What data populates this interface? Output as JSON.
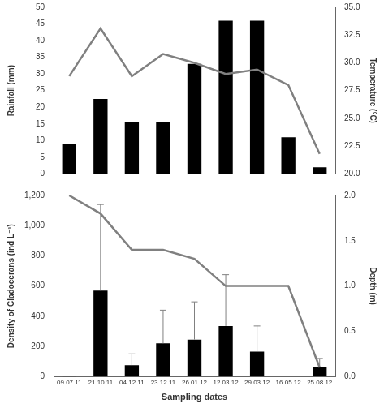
{
  "chart_data": [
    {
      "type": "bar",
      "categories": [
        null,
        null,
        null,
        null,
        null,
        null,
        null,
        null,
        null
      ],
      "ylim": [
        0,
        50
      ],
      "yticks": [
        0,
        5,
        10,
        15,
        20,
        25,
        30,
        35,
        40,
        45,
        50
      ],
      "y2lim": [
        20,
        35
      ],
      "y2ticks": [
        {
          "value": 20,
          "label": "20.0"
        },
        22.5,
        {
          "value": 25,
          "label": "25.0"
        },
        27.5,
        {
          "value": 30,
          "label": "30.0"
        },
        32.5,
        {
          "value": 35,
          "label": "35.0"
        }
      ],
      "grid": false,
      "series": [
        {
          "name": "Rainfall (mm)",
          "type": "bar",
          "color": "#000000",
          "values": [
            9,
            22.5,
            15.5,
            15.5,
            33,
            46,
            46,
            11,
            2
          ]
        },
        {
          "name": "Temperature (°C)",
          "type": "line",
          "axis": "y2",
          "color": "#808080",
          "marker": "none",
          "line_style": "solid",
          "values": [
            28.8,
            33.1,
            28.8,
            30.8,
            30.0,
            29.0,
            29.4,
            28.0,
            21.8
          ]
        }
      ]
    },
    {
      "type": "bar",
      "xlabel": "Sampling dates",
      "categories": [
        "09.07.11",
        "21.10.11",
        "04.12.11",
        "23.12.11",
        "26.01.12",
        "12.03.12",
        "29.03.12",
        "16.05.12",
        "25.08.12"
      ],
      "ylim": [
        0,
        1200
      ],
      "yticks": [
        0,
        200,
        400,
        600,
        800,
        {
          "value": 1000,
          "label": "1,000"
        },
        {
          "value": 1200,
          "label": "1,200"
        }
      ],
      "y2lim": [
        0,
        2
      ],
      "y2ticks": [
        {
          "value": 0,
          "label": "0.0"
        },
        0.5,
        {
          "value": 1,
          "label": "1.0"
        },
        1.5,
        {
          "value": 2,
          "label": "2.0"
        }
      ],
      "grid": false,
      "series": [
        {
          "name": "Density of Cladocerans (ind L⁻¹)",
          "type": "bar",
          "color": "#000000",
          "values": [
            3,
            570,
            75,
            220,
            245,
            335,
            165,
            0,
            60
          ],
          "errors": [
            null,
            570,
            75,
            220,
            250,
            340,
            170,
            null,
            60
          ]
        },
        {
          "name": "Depth (m)",
          "type": "line",
          "axis": "y2",
          "color": "#808080",
          "marker": "none",
          "line_style": "solid",
          "values": [
            2.0,
            1.8,
            1.4,
            1.4,
            1.3,
            1.0,
            1.0,
            1.0,
            0.1
          ]
        }
      ]
    }
  ]
}
